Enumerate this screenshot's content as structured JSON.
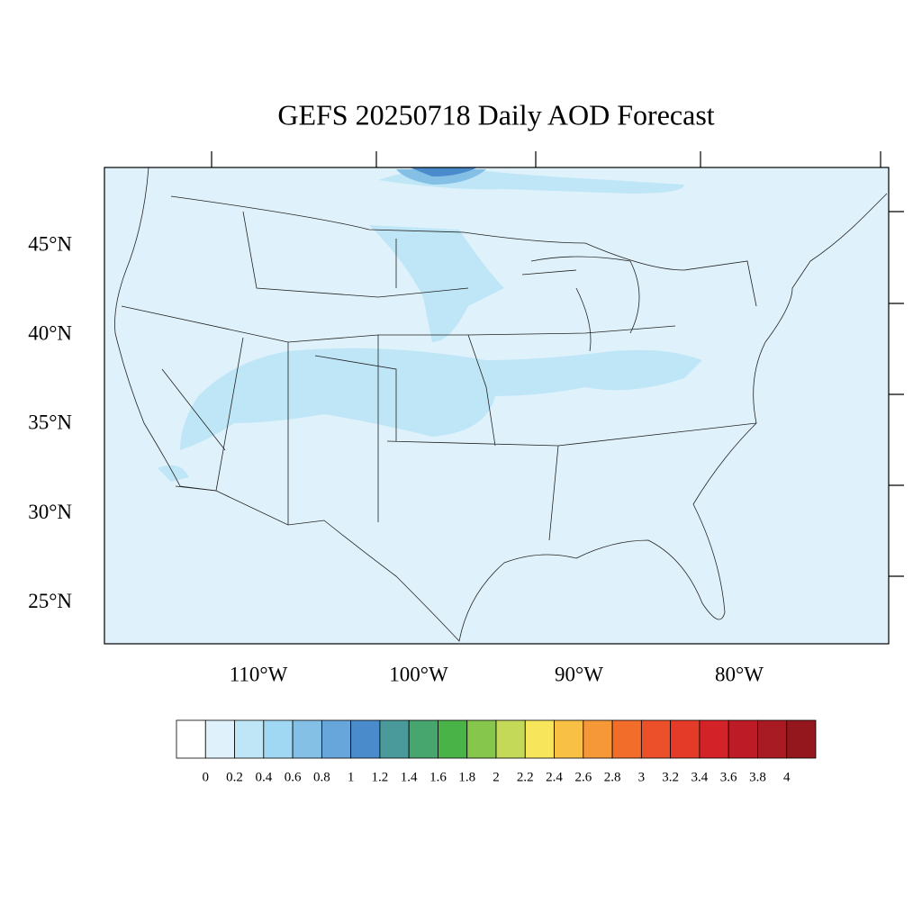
{
  "title": "GEFS 20250718 Daily AOD Forecast",
  "lat_labels": [
    "45°N",
    "40°N",
    "35°N",
    "30°N",
    "25°N"
  ],
  "lon_labels": [
    "110°W",
    "100°W",
    "90°W",
    "80°W"
  ],
  "colorbar": {
    "colors": [
      "#ffffff",
      "#dff2fb",
      "#bfe6f7",
      "#a0d8f3",
      "#84bfe6",
      "#66a6da",
      "#4a8ccb",
      "#4a9a9c",
      "#47a66e",
      "#4ab347",
      "#86c64c",
      "#c3d957",
      "#f7e65b",
      "#f8c045",
      "#f69838",
      "#f26c2a",
      "#eb502a",
      "#e33b27",
      "#d42229",
      "#bd1b26",
      "#a91b22",
      "#93171d"
    ],
    "labels": [
      0,
      0.2,
      0.4,
      0.6,
      0.8,
      1,
      1.2,
      1.4,
      1.6,
      1.8,
      2,
      2.2,
      2.4,
      2.6,
      2.8,
      3,
      3.2,
      3.4,
      3.6,
      3.8,
      4
    ]
  }
}
